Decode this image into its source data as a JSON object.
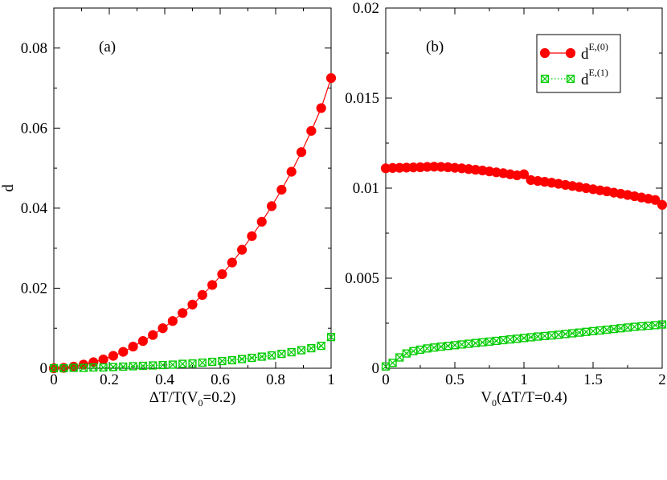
{
  "chart_data": [
    {
      "type": "line",
      "panel_label": "(a)",
      "ylabel": "d",
      "xlabel": {
        "main": "ΔT/T(V",
        "sub": "0",
        "tail": "=0.2)"
      },
      "xlim": [
        0,
        1
      ],
      "ylim": [
        0,
        0.09
      ],
      "xticks": [
        0,
        0.2,
        0.4,
        0.6,
        0.8,
        1
      ],
      "xtick_labels": [
        "0",
        "0.2",
        "0.4",
        "0.6",
        "0.8",
        "1"
      ],
      "yticks": [
        0,
        0.02,
        0.04,
        0.06,
        0.08
      ],
      "ytick_labels": [
        "0",
        "0.02",
        "0.04",
        "0.06",
        "0.08"
      ],
      "grid": false,
      "x": [
        0,
        0.0357,
        0.0714,
        0.1071,
        0.1429,
        0.1786,
        0.2143,
        0.25,
        0.2857,
        0.3214,
        0.3571,
        0.3929,
        0.4286,
        0.4643,
        0.5,
        0.5357,
        0.5714,
        0.6071,
        0.6429,
        0.6786,
        0.7143,
        0.75,
        0.7857,
        0.8214,
        0.8571,
        0.8929,
        0.9286,
        0.9643,
        1.0
      ],
      "series": [
        {
          "name": "d^{E,(0)}",
          "color": "#ff0000",
          "marker": "circle",
          "line": "solid",
          "values": [
            0.0,
            0.0001,
            0.0004,
            0.0009,
            0.0015,
            0.0022,
            0.0031,
            0.0041,
            0.0054,
            0.0068,
            0.0083,
            0.01,
            0.0118,
            0.0138,
            0.0159,
            0.0183,
            0.0208,
            0.0235,
            0.0264,
            0.0296,
            0.033,
            0.0366,
            0.0405,
            0.0446,
            0.0491,
            0.054,
            0.0593,
            0.065,
            0.0725
          ]
        },
        {
          "name": "d^{E,(1)}",
          "color": "#00cc00",
          "marker": "square-x",
          "line": "dotted",
          "values": [
            0.0,
            0.0,
            0.0001,
            0.0001,
            0.0002,
            0.0002,
            0.0003,
            0.0004,
            0.0005,
            0.0006,
            0.0007,
            0.0008,
            0.0009,
            0.0011,
            0.0012,
            0.0014,
            0.0016,
            0.0018,
            0.002,
            0.0023,
            0.0026,
            0.0029,
            0.0032,
            0.0036,
            0.004,
            0.0045,
            0.005,
            0.0056,
            0.0078
          ]
        }
      ]
    },
    {
      "type": "line",
      "panel_label": "(b)",
      "ylabel": "",
      "xlabel": {
        "main": "V",
        "sub": "0",
        "tail": "(ΔT/T=0.4)"
      },
      "xlim": [
        0,
        2
      ],
      "ylim": [
        0,
        0.02
      ],
      "xticks": [
        0,
        0.5,
        1,
        1.5,
        2
      ],
      "xtick_labels": [
        "0",
        "0.5",
        "1",
        "1.5",
        "2"
      ],
      "yticks": [
        0,
        0.005,
        0.01,
        0.015,
        0.02
      ],
      "ytick_labels": [
        "0",
        "0.005",
        "0.01",
        "0.015",
        "0.02"
      ],
      "grid": false,
      "legend": {
        "placement": "top-right",
        "entries": [
          {
            "base": "d",
            "sup": "E,(0)",
            "color": "#ff0000",
            "marker": "circle",
            "line": "solid"
          },
          {
            "base": "d",
            "sup": "E,(1)",
            "color": "#00cc00",
            "marker": "square-x",
            "line": "dotted"
          }
        ]
      },
      "x": [
        0,
        0.05,
        0.1,
        0.15,
        0.2,
        0.25,
        0.3,
        0.35,
        0.4,
        0.45,
        0.5,
        0.55,
        0.6,
        0.65,
        0.7,
        0.75,
        0.8,
        0.85,
        0.9,
        0.95,
        1.0,
        1.05,
        1.1,
        1.15,
        1.2,
        1.25,
        1.3,
        1.35,
        1.4,
        1.45,
        1.5,
        1.55,
        1.6,
        1.65,
        1.7,
        1.75,
        1.8,
        1.85,
        1.9,
        1.95,
        2.0
      ],
      "series": [
        {
          "name": "d^{E,(0)}",
          "color": "#ff0000",
          "marker": "circle",
          "line": "solid",
          "values": [
            0.0111,
            0.01112,
            0.01113,
            0.01114,
            0.01115,
            0.01116,
            0.01118,
            0.01119,
            0.01118,
            0.01116,
            0.01113,
            0.0111,
            0.01106,
            0.01102,
            0.01098,
            0.01093,
            0.01088,
            0.01083,
            0.01077,
            0.01071,
            0.01077,
            0.01045,
            0.0104,
            0.01035,
            0.0103,
            0.01024,
            0.01018,
            0.01012,
            0.01006,
            0.01,
            0.00994,
            0.00988,
            0.00982,
            0.00975,
            0.00969,
            0.00962,
            0.00955,
            0.00948,
            0.00941,
            0.00934,
            0.00907
          ]
        },
        {
          "name": "d^{E,(1)}",
          "color": "#00cc00",
          "marker": "square-x",
          "line": "dotted",
          "values": [
            0.0001,
            0.0003,
            0.0006,
            0.00082,
            0.00095,
            0.00103,
            0.0011,
            0.00115,
            0.0012,
            0.00124,
            0.00128,
            0.00132,
            0.00136,
            0.0014,
            0.00144,
            0.00148,
            0.00152,
            0.00156,
            0.0016,
            0.00164,
            0.00168,
            0.00172,
            0.00176,
            0.00179,
            0.00182,
            0.00186,
            0.0019,
            0.00194,
            0.00198,
            0.00202,
            0.00206,
            0.0021,
            0.00214,
            0.00218,
            0.00222,
            0.00226,
            0.0023,
            0.00233,
            0.00236,
            0.00239,
            0.00243
          ]
        }
      ]
    }
  ]
}
